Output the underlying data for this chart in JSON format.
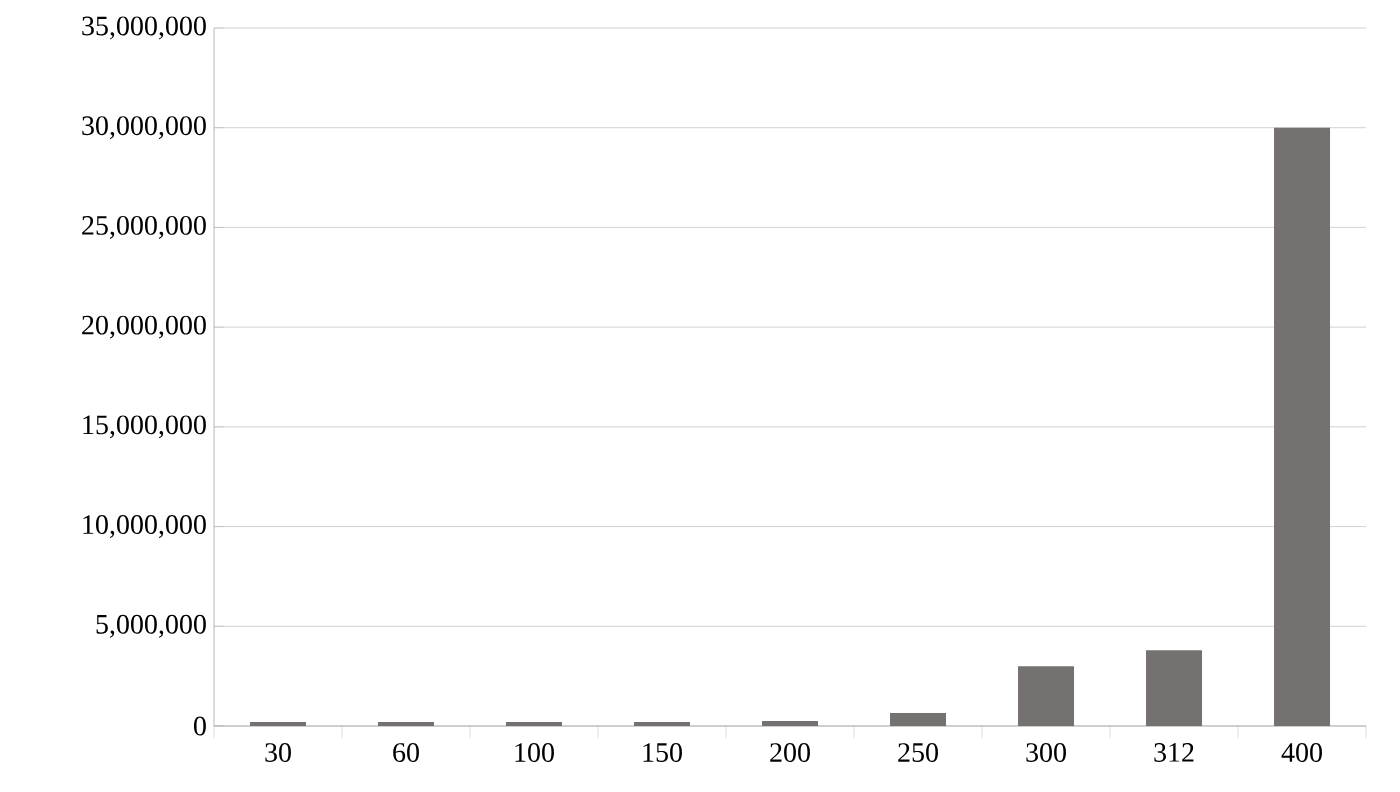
{
  "chart_data": {
    "type": "bar",
    "categories": [
      "30",
      "60",
      "100",
      "150",
      "200",
      "250",
      "300",
      "312",
      "400"
    ],
    "values": [
      200000,
      200000,
      200000,
      200000,
      250000,
      650000,
      3000000,
      3800000,
      30000000
    ],
    "color": "#767171",
    "ylim": [
      0,
      35000000
    ],
    "yticks": [
      {
        "value": 0,
        "label": "0"
      },
      {
        "value": 5000000,
        "label": "5,000,000"
      },
      {
        "value": 10000000,
        "label": "10,000,000"
      },
      {
        "value": 15000000,
        "label": "15,000,000"
      },
      {
        "value": 20000000,
        "label": "20,000,000"
      },
      {
        "value": 25000000,
        "label": "25,000,000"
      },
      {
        "value": 30000000,
        "label": "30,000,000"
      },
      {
        "value": 35000000,
        "label": "35,000,000"
      }
    ],
    "grid": "y"
  }
}
